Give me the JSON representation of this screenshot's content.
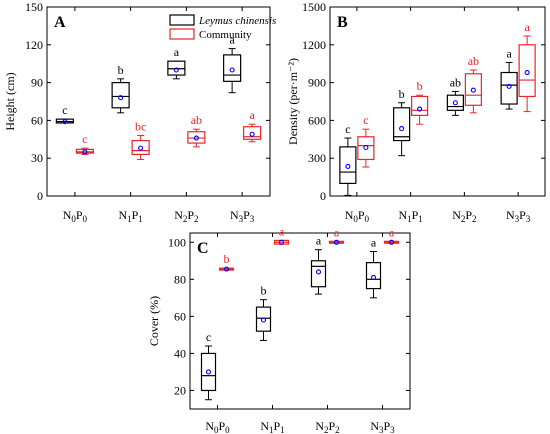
{
  "legend": {
    "items": [
      {
        "label": "Leymus chinensis",
        "color": "#000000",
        "italic": true
      },
      {
        "label": "Community",
        "color": "#e8262a",
        "italic": false
      }
    ]
  },
  "colors": {
    "lc": "#000000",
    "community": "#e8262a",
    "mean_marker": "#0000ff"
  },
  "chart_data": [
    {
      "panel": "A",
      "type": "box",
      "ylabel": "Height (cm)",
      "ylim": [
        0,
        150
      ],
      "yticks": [
        0,
        30,
        60,
        90,
        120,
        150
      ],
      "categories": [
        {
          "base": "N",
          "sub1": "0",
          "mid": "P",
          "sub2": "0"
        },
        {
          "base": "N",
          "sub1": "1",
          "mid": "P",
          "sub2": "1"
        },
        {
          "base": "N",
          "sub1": "2",
          "mid": "P",
          "sub2": "2"
        },
        {
          "base": "N",
          "sub1": "3",
          "mid": "P",
          "sub2": "3"
        }
      ],
      "series": [
        {
          "name": "Leymus chinensis",
          "color": "#000000",
          "boxes": [
            {
              "min": 58,
              "q1": 58,
              "median": 59,
              "q3": 61,
              "max": 61,
              "mean": 59,
              "letter": "c"
            },
            {
              "min": 66,
              "q1": 70,
              "median": 79,
              "q3": 90,
              "max": 93,
              "mean": 78,
              "letter": "b"
            },
            {
              "min": 93,
              "q1": 96,
              "median": 101,
              "q3": 107,
              "max": 107,
              "mean": 100,
              "letter": "a"
            },
            {
              "min": 82,
              "q1": 91,
              "median": 96,
              "q3": 112,
              "max": 117,
              "mean": 100,
              "letter": "a"
            }
          ]
        },
        {
          "name": "Community",
          "color": "#e8262a",
          "boxes": [
            {
              "min": 33,
              "q1": 34,
              "median": 35,
              "q3": 37,
              "max": 38,
              "mean": 35,
              "letter": "c"
            },
            {
              "min": 29,
              "q1": 33,
              "median": 36,
              "q3": 44,
              "max": 48,
              "mean": 38,
              "letter": "bc"
            },
            {
              "min": 39,
              "q1": 42,
              "median": 46,
              "q3": 51,
              "max": 53,
              "mean": 46,
              "letter": "ab"
            },
            {
              "min": 43,
              "q1": 45,
              "median": 47,
              "q3": 55,
              "max": 57,
              "mean": 49,
              "letter": "a"
            }
          ]
        }
      ]
    },
    {
      "panel": "B",
      "type": "box",
      "ylabel": "Density (per·m⁻²)",
      "ylim": [
        0,
        1500
      ],
      "yticks": [
        0,
        300,
        600,
        900,
        1200,
        1500
      ],
      "categories": [
        {
          "base": "N",
          "sub1": "0",
          "mid": "P",
          "sub2": "0"
        },
        {
          "base": "N",
          "sub1": "1",
          "mid": "P",
          "sub2": "1"
        },
        {
          "base": "N",
          "sub1": "2",
          "mid": "P",
          "sub2": "2"
        },
        {
          "base": "N",
          "sub1": "3",
          "mid": "P",
          "sub2": "3"
        }
      ],
      "series": [
        {
          "name": "Leymus chinensis",
          "color": "#000000",
          "boxes": [
            {
              "min": 5,
              "q1": 100,
              "median": 190,
              "q3": 390,
              "max": 460,
              "mean": 235,
              "letter": "c"
            },
            {
              "min": 320,
              "q1": 440,
              "median": 470,
              "q3": 700,
              "max": 740,
              "mean": 535,
              "letter": "b"
            },
            {
              "min": 640,
              "q1": 680,
              "median": 710,
              "q3": 800,
              "max": 830,
              "mean": 740,
              "letter": "ab"
            },
            {
              "min": 690,
              "q1": 730,
              "median": 880,
              "q3": 980,
              "max": 1060,
              "mean": 870,
              "letter": "a"
            }
          ]
        },
        {
          "name": "Community",
          "color": "#e8262a",
          "boxes": [
            {
              "min": 230,
              "q1": 290,
              "median": 400,
              "q3": 470,
              "max": 530,
              "mean": 385,
              "letter": "c"
            },
            {
              "min": 570,
              "q1": 640,
              "median": 680,
              "q3": 790,
              "max": 800,
              "mean": 690,
              "letter": "b"
            },
            {
              "min": 660,
              "q1": 720,
              "median": 800,
              "q3": 970,
              "max": 1000,
              "mean": 840,
              "letter": "ab"
            },
            {
              "min": 670,
              "q1": 790,
              "median": 920,
              "q3": 1200,
              "max": 1270,
              "mean": 980,
              "letter": "a"
            }
          ]
        }
      ]
    },
    {
      "panel": "C",
      "type": "box",
      "ylabel": "Cover (%)",
      "ylim": [
        10,
        105
      ],
      "yticks": [
        20,
        40,
        60,
        80,
        100
      ],
      "categories": [
        {
          "base": "N",
          "sub1": "0",
          "mid": "P",
          "sub2": "0"
        },
        {
          "base": "N",
          "sub1": "1",
          "mid": "P",
          "sub2": "1"
        },
        {
          "base": "N",
          "sub1": "2",
          "mid": "P",
          "sub2": "2"
        },
        {
          "base": "N",
          "sub1": "3",
          "mid": "P",
          "sub2": "3"
        }
      ],
      "series": [
        {
          "name": "Leymus chinensis",
          "color": "#000000",
          "boxes": [
            {
              "min": 15,
              "q1": 20,
              "median": 28,
              "q3": 40,
              "max": 44,
              "mean": 30,
              "letter": "c"
            },
            {
              "min": 47,
              "q1": 52,
              "median": 59,
              "q3": 65,
              "max": 69,
              "mean": 58,
              "letter": "b"
            },
            {
              "min": 72,
              "q1": 76,
              "median": 87,
              "q3": 90,
              "max": 96,
              "mean": 84,
              "letter": "a"
            },
            {
              "min": 70,
              "q1": 75,
              "median": 80,
              "q3": 89,
              "max": 95,
              "mean": 81,
              "letter": "a"
            }
          ]
        },
        {
          "name": "Community",
          "color": "#e8262a",
          "boxes": [
            {
              "min": 85,
              "q1": 85,
              "median": 85.5,
              "q3": 86,
              "max": 86,
              "mean": 85.5,
              "letter": "b"
            },
            {
              "min": 99,
              "q1": 99,
              "median": 100,
              "q3": 101,
              "max": 101,
              "mean": 100,
              "letter": "a"
            },
            {
              "min": 99.5,
              "q1": 99.5,
              "median": 100,
              "q3": 100.5,
              "max": 100.5,
              "mean": 100,
              "letter": "a"
            },
            {
              "min": 99.5,
              "q1": 99.5,
              "median": 100,
              "q3": 100.5,
              "max": 100.5,
              "mean": 100,
              "letter": "a"
            }
          ]
        }
      ]
    }
  ]
}
